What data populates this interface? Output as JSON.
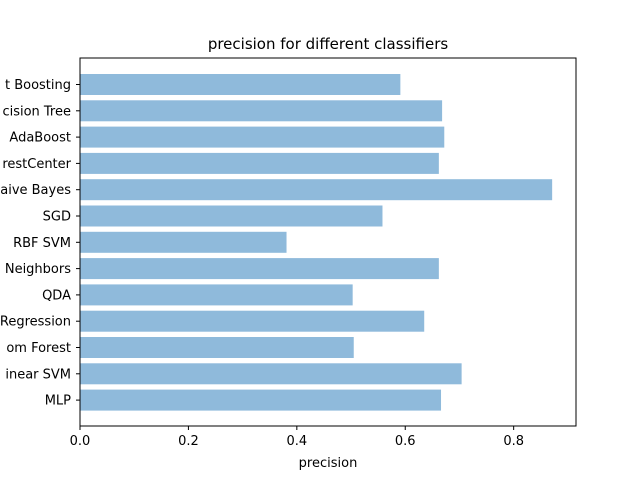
{
  "chart_data": {
    "type": "bar",
    "orientation": "horizontal",
    "title": "precision for different classifiers",
    "xlabel": "precision",
    "ylabel": "",
    "categories": [
      "t Boosting",
      "cision Tree",
      "AdaBoost",
      "restCenter",
      "aive Bayes",
      "SGD",
      "RBF SVM",
      "Neighbors",
      "QDA",
      "Regression",
      "om Forest",
      "inear SVM",
      "MLP"
    ],
    "values": [
      0.591,
      0.668,
      0.672,
      0.662,
      0.871,
      0.558,
      0.381,
      0.662,
      0.503,
      0.635,
      0.505,
      0.704,
      0.666
    ],
    "xlim": [
      0.0,
      0.915
    ],
    "xticks": [
      "0.0",
      "0.2",
      "0.4",
      "0.6",
      "0.8"
    ],
    "xtick_values": [
      0.0,
      0.2,
      0.4,
      0.6,
      0.8
    ],
    "bar_color": "#8fbadb",
    "grid": false
  }
}
